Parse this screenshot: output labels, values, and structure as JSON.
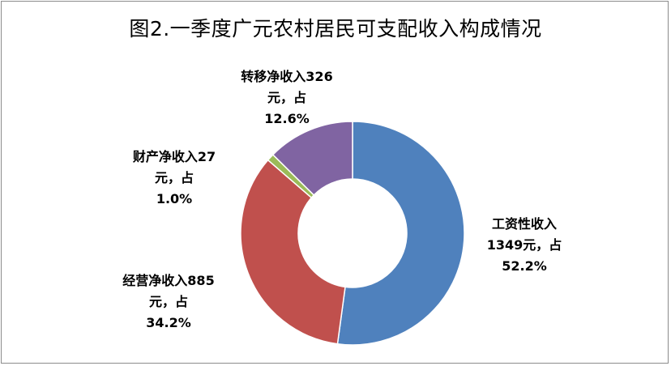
{
  "chart_data": {
    "type": "pie",
    "title": "图2.一季度广元农村居民可支配收入构成情况",
    "slices": [
      {
        "label_lines": [
          "工资性收入",
          "1349元，占",
          "52.2%"
        ],
        "value": 1349,
        "percent": 52.2,
        "color": "#4f81bd"
      },
      {
        "label_lines": [
          "经营净收入885",
          "元，占",
          "34.2%"
        ],
        "value": 885,
        "percent": 34.2,
        "color": "#c0504d"
      },
      {
        "label_lines": [
          "财产净收入27",
          "元，占",
          "1.0%"
        ],
        "value": 27,
        "percent": 1.0,
        "color": "#9bbb59"
      },
      {
        "label_lines": [
          "转移净收入326",
          "元，占",
          "12.6%"
        ],
        "value": 326,
        "percent": 12.6,
        "color": "#8064a2"
      }
    ],
    "start_angle_deg": 0,
    "direction": "clockwise",
    "legend": "none"
  }
}
